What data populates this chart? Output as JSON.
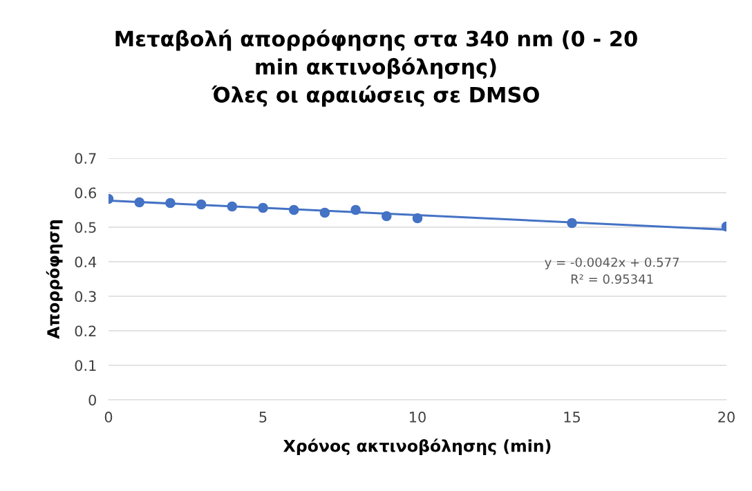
{
  "chart_data": {
    "type": "scatter",
    "title": "Μεταβολή απορρόφησης στα 340 nm (0 - 20\nmin ακτινοβόλησης)\nΌλες οι αραιώσεις σε DMSO",
    "xlabel": "Χρόνος ακτινοβόλησης (min)",
    "ylabel": "Απορρόφηση",
    "x": [
      0,
      1,
      2,
      3,
      4,
      5,
      6,
      7,
      8,
      9,
      10,
      15,
      20
    ],
    "series": [
      {
        "color": "#4472c4",
        "marker": "circle",
        "values": [
          0.582,
          0.572,
          0.57,
          0.566,
          0.56,
          0.556,
          0.55,
          0.542,
          0.55,
          0.532,
          0.526,
          0.512,
          0.502
        ]
      },
      {
        "type": "line",
        "marker": "none",
        "color": "#4472c4",
        "x": [
          0,
          20
        ],
        "values": [
          0.577,
          0.493
        ]
      }
    ],
    "annotations": [
      "y = -0.0042x + 0.577\nR² = 0.95341"
    ],
    "xlim": [
      0,
      20
    ],
    "xticks": [
      0,
      5,
      10,
      15,
      20
    ],
    "ylim": [
      0,
      0.7
    ],
    "yticks": [
      0,
      0.1,
      0.2,
      0.3,
      0.4,
      0.5,
      0.6,
      0.7
    ],
    "grid": "y",
    "legend": false
  }
}
